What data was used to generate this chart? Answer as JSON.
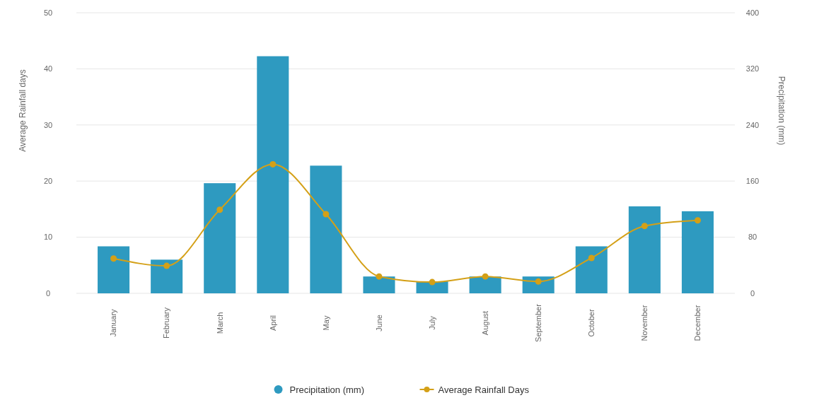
{
  "chart_data": {
    "type": "bar",
    "categories": [
      "January",
      "February",
      "March",
      "April",
      "May",
      "June",
      "July",
      "August",
      "September",
      "October",
      "November",
      "December"
    ],
    "series": [
      {
        "name": "Precipitation (mm)",
        "axis": "y2",
        "color": "#2e9ac0",
        "values": [
          67,
          48,
          157,
          338,
          182,
          24,
          17,
          24,
          24,
          67,
          124,
          117
        ]
      },
      {
        "name": "Average Rainfall Days",
        "type": "line",
        "axis": "y",
        "color": "#d4a017",
        "marker": "circle",
        "values": [
          6.2,
          4.9,
          14.9,
          23.0,
          14.1,
          3.0,
          2.0,
          3.0,
          2.1,
          6.3,
          12.0,
          13.0
        ]
      }
    ],
    "ylabel": "Average Rainfall days",
    "y2label": "Precipitation (mm)",
    "ylim": [
      0,
      50
    ],
    "yticks": [
      0,
      10,
      20,
      30,
      40,
      50
    ],
    "y2lim": [
      0,
      400
    ],
    "y2ticks": [
      0,
      80,
      160,
      240,
      320,
      400
    ],
    "grid": "y",
    "legend": "bottom"
  }
}
